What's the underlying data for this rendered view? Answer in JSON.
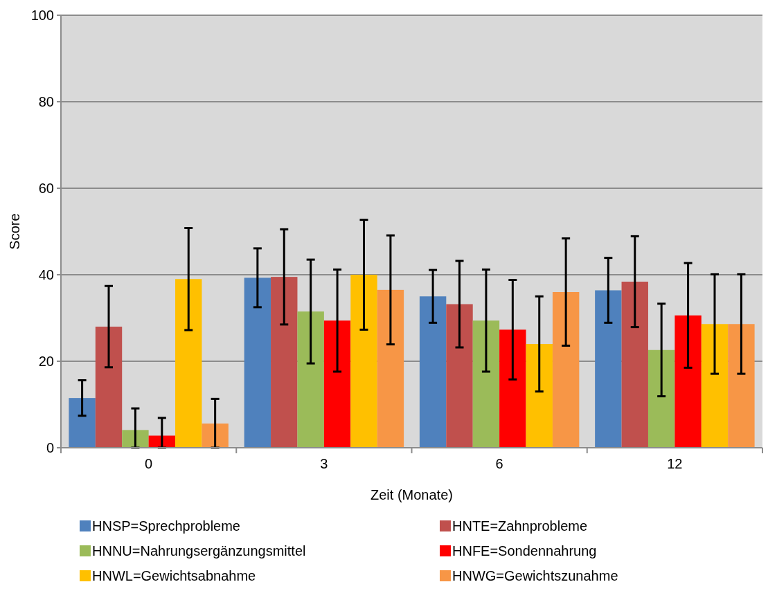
{
  "chart_data": {
    "type": "bar",
    "xlabel": "Zeit (Monate)",
    "ylabel": "Score",
    "categories": [
      "0",
      "3",
      "6",
      "12"
    ],
    "series": [
      {
        "name": "HNSP=Sprechprobleme",
        "color": "#4f81bd",
        "values": [
          11.5,
          39.3,
          35,
          36.4
        ],
        "errors": [
          4.1,
          6.8,
          6.1,
          7.5
        ]
      },
      {
        "name": "HNTE=Zahnprobleme",
        "color": "#c0504d",
        "values": [
          28,
          39.5,
          33.2,
          38.4
        ],
        "errors": [
          9.4,
          11,
          10,
          10.5
        ]
      },
      {
        "name": "HNNU=Nahrungsergänzungsmittel",
        "color": "#9bbb59",
        "values": [
          4.1,
          31.5,
          29.4,
          22.6
        ],
        "errors": [
          [
            0,
            9.1
          ],
          12,
          11.8,
          10.7
        ]
      },
      {
        "name": "HNFE=Sondennahrung",
        "color": "#ff0000",
        "values": [
          2.8,
          29.4,
          27.3,
          30.6
        ],
        "errors": [
          [
            0,
            6.9
          ],
          11.8,
          11.5,
          12.1
        ]
      },
      {
        "name": "HNWL=Gewichtsabnahme",
        "color": "#ffc000",
        "values": [
          39,
          40,
          24,
          28.6
        ],
        "errors": [
          11.8,
          12.7,
          11,
          11.5
        ]
      },
      {
        "name": "HNWG=Gewichtszunahme",
        "color": "#f79646",
        "values": [
          5.6,
          36.5,
          36,
          28.6
        ],
        "errors": [
          [
            0,
            11.3
          ],
          12.6,
          12.4,
          11.5
        ]
      }
    ],
    "ylim": [
      0,
      100
    ],
    "yticks": [
      0,
      20,
      40,
      60,
      80,
      100
    ],
    "grid": "y",
    "legend": "bottom"
  }
}
